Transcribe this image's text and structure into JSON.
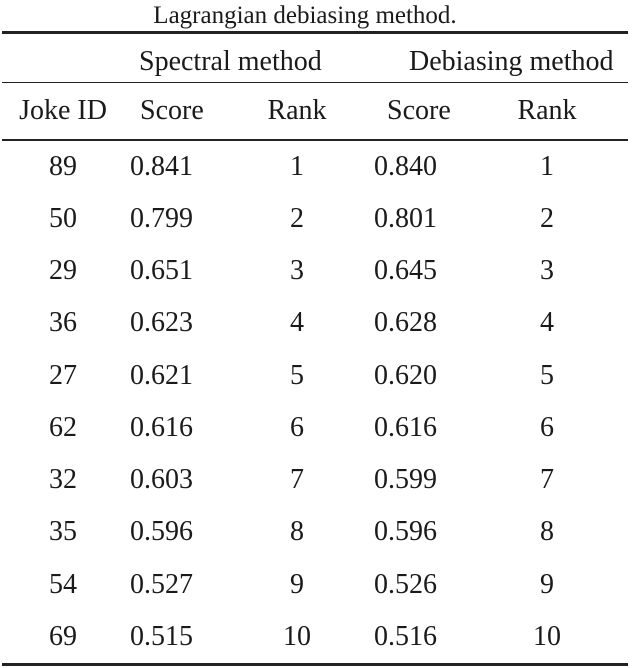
{
  "caption": "Lagrangian debiasing method.",
  "table": {
    "group_headers": {
      "spectral": "Spectral method",
      "debiasing": "Debiasing method"
    },
    "columns": [
      "Joke ID",
      "Score",
      "Rank",
      "Score",
      "Rank"
    ],
    "rows": [
      {
        "joke_id": "89",
        "spectral_score": "0.841",
        "spectral_rank": "1",
        "debias_score": "0.840",
        "debias_rank": "1"
      },
      {
        "joke_id": "50",
        "spectral_score": "0.799",
        "spectral_rank": "2",
        "debias_score": "0.801",
        "debias_rank": "2"
      },
      {
        "joke_id": "29",
        "spectral_score": "0.651",
        "spectral_rank": "3",
        "debias_score": "0.645",
        "debias_rank": "3"
      },
      {
        "joke_id": "36",
        "spectral_score": "0.623",
        "spectral_rank": "4",
        "debias_score": "0.628",
        "debias_rank": "4"
      },
      {
        "joke_id": "27",
        "spectral_score": "0.621",
        "spectral_rank": "5",
        "debias_score": "0.620",
        "debias_rank": "5"
      },
      {
        "joke_id": "62",
        "spectral_score": "0.616",
        "spectral_rank": "6",
        "debias_score": "0.616",
        "debias_rank": "6"
      },
      {
        "joke_id": "32",
        "spectral_score": "0.603",
        "spectral_rank": "7",
        "debias_score": "0.599",
        "debias_rank": "7"
      },
      {
        "joke_id": "35",
        "spectral_score": "0.596",
        "spectral_rank": "8",
        "debias_score": "0.596",
        "debias_rank": "8"
      },
      {
        "joke_id": "54",
        "spectral_score": "0.527",
        "spectral_rank": "9",
        "debias_score": "0.526",
        "debias_rank": "9"
      },
      {
        "joke_id": "69",
        "spectral_score": "0.515",
        "spectral_rank": "10",
        "debias_score": "0.516",
        "debias_rank": "10"
      }
    ]
  },
  "colors": {
    "text": "#1a1a1a",
    "rule": "#222222",
    "background": "#ffffff"
  }
}
